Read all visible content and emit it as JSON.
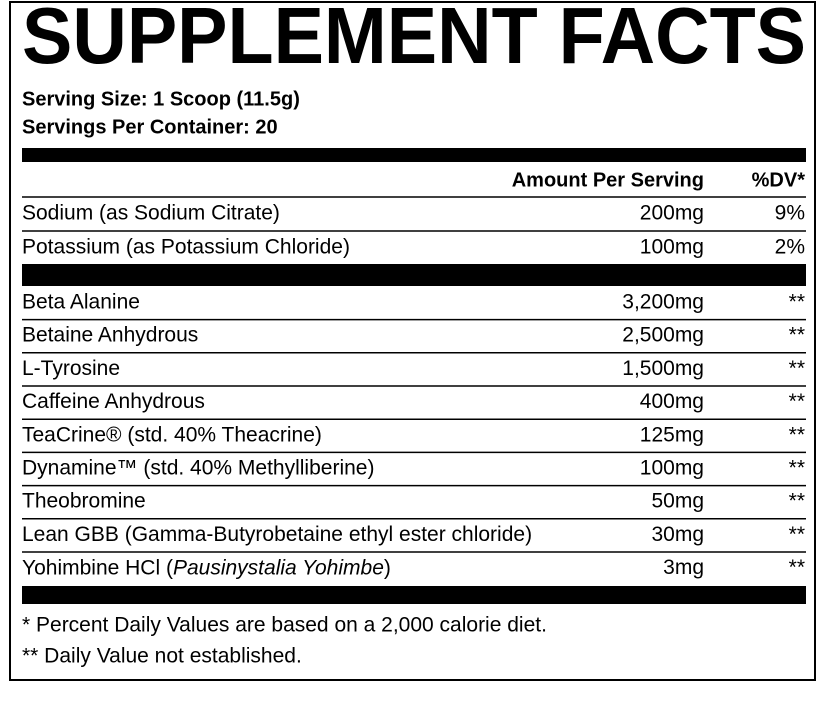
{
  "title": "SUPPLEMENT FACTS",
  "serving_size": "Serving Size: 1 Scoop (11.5g)",
  "servings_per_container": "Servings Per Container: 20",
  "table": {
    "header": {
      "amount": "Amount Per Serving",
      "dv": "%DV*"
    },
    "groups": [
      [
        {
          "name": "Sodium (as Sodium Citrate)",
          "amount": "200mg",
          "dv": "9%"
        },
        {
          "name": "Potassium (as Potassium Chloride)",
          "amount": "100mg",
          "dv": "2%"
        }
      ],
      [
        {
          "name": "Beta Alanine",
          "amount": "3,200mg",
          "dv": "**"
        },
        {
          "name": "Betaine Anhydrous",
          "amount": "2,500mg",
          "dv": "**"
        },
        {
          "name": "L-Tyrosine",
          "amount": "1,500mg",
          "dv": "**"
        },
        {
          "name": "Caffeine Anhydrous",
          "amount": "400mg",
          "dv": "**"
        },
        {
          "name": "TeaCrine® (std. 40% Theacrine)",
          "amount": "125mg",
          "dv": "**"
        },
        {
          "name": "Dynamine™ (std. 40% Methylliberine)",
          "amount": "100mg",
          "dv": "**"
        },
        {
          "name": "Theobromine",
          "amount": "50mg",
          "dv": "**"
        },
        {
          "name": "Lean GBB (Gamma-Butyrobetaine ethyl ester chloride)",
          "amount": "30mg",
          "dv": "**"
        },
        {
          "name": [
            {
              "text": "Yohimbine HCl ("
            },
            {
              "text": "Pausinystalia Yohimbe",
              "italic": true
            },
            {
              "text": ")"
            }
          ],
          "amount": "3mg",
          "dv": "**"
        }
      ]
    ]
  },
  "footnotes": [
    "* Percent Daily Values are based on a 2,000 calorie diet.",
    "** Daily Value not established."
  ]
}
